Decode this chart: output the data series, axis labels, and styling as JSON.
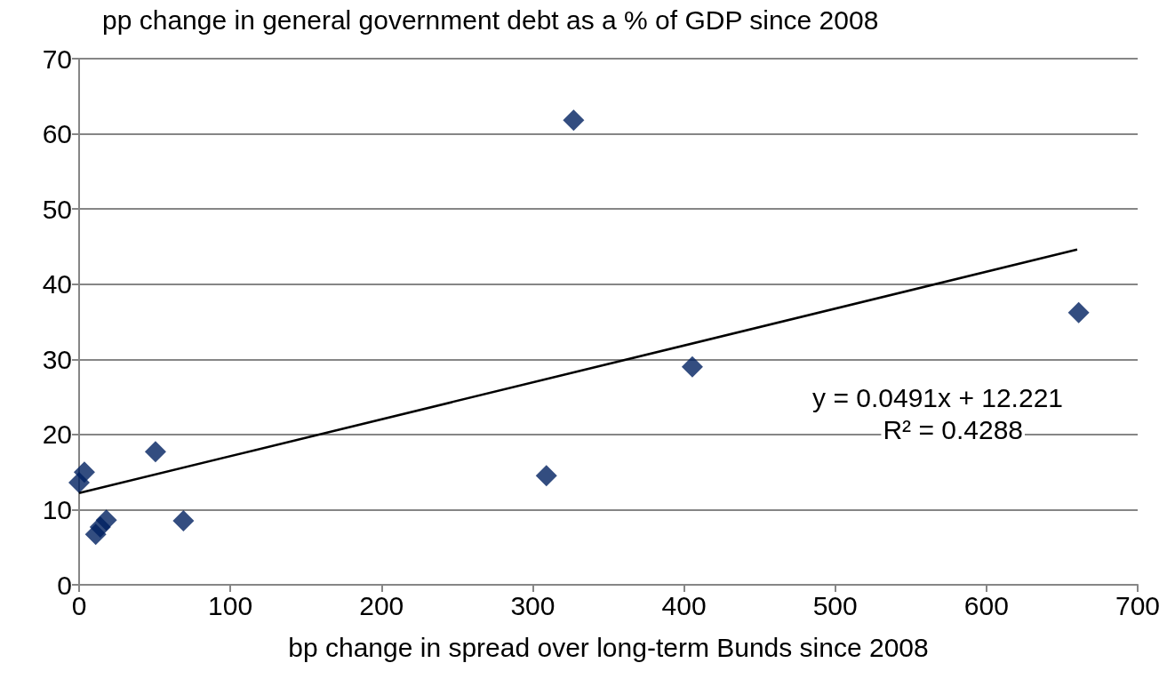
{
  "chart_data": {
    "type": "scatter",
    "title": "pp change in general government debt as a % of GDP since 2008",
    "xlabel": "bp change in spread over long-term Bunds since 2008",
    "x": [
      0,
      3.5,
      11,
      14,
      18,
      50.5,
      69,
      309,
      327,
      405.5,
      661
    ],
    "series": [
      {
        "color": "#002060",
        "marker": "diamond",
        "values": [
          13.6,
          15,
          6.7,
          7.7,
          8.6,
          17.7,
          8.5,
          14.5,
          61.8,
          29,
          36.2
        ]
      },
      {
        "type": "line",
        "color": "#000000",
        "marker": "none",
        "line_style": "solid",
        "x": [
          0,
          660
        ],
        "values": [
          12.2,
          44.6
        ]
      }
    ],
    "annotations": [
      "y = 0.0491x + 12.221",
      "R² = 0.4288"
    ],
    "xlim": [
      0,
      700
    ],
    "xticks": [
      0,
      100,
      200,
      300,
      400,
      500,
      600,
      700
    ],
    "ylim": [
      0,
      70
    ],
    "yticks": [
      0,
      10,
      20,
      30,
      40,
      50,
      60,
      70
    ],
    "grid": "y"
  }
}
